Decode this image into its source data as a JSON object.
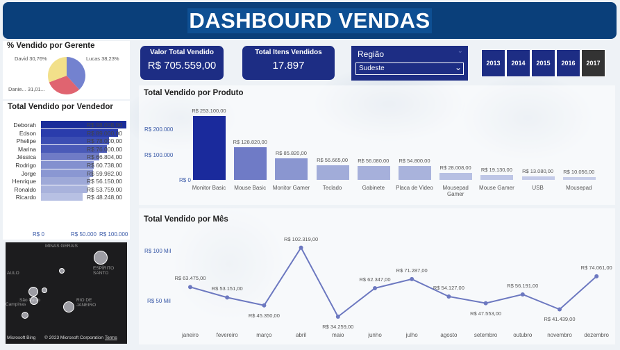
{
  "header": {
    "title": "DASHBOURD VENDAS"
  },
  "colors": {
    "header": "#0a3f7a",
    "kpi": "#1d2d84",
    "accent": "#6c78c0",
    "selected_year": "#333333"
  },
  "pie": {
    "title": "% Vendido por Gerente",
    "labels": [
      "David 30,76%",
      "Lucas 38,23%",
      "Danie... 31,01..."
    ],
    "slices": [
      {
        "name": "Lucas",
        "pct": 38.23,
        "color": "#7382cf"
      },
      {
        "name": "Daniel",
        "pct": 31.01,
        "color": "#e06470"
      },
      {
        "name": "David",
        "pct": 30.76,
        "color": "#f2e08a"
      }
    ]
  },
  "kpis": [
    {
      "title": "Valor Total Vendido",
      "value": "R$ 705.559,00"
    },
    {
      "title": "Total Itens Vendidos",
      "value": "17.897"
    }
  ],
  "region_filter": {
    "label": "Região",
    "selected": "Sudeste"
  },
  "years": [
    "2013",
    "2014",
    "2015",
    "2016",
    "2017"
  ],
  "selected_year": "2017",
  "vendedor_chart": {
    "title": "Total Vendido por Vendedor",
    "axis": [
      "R$ 0",
      "R$ 50.000",
      "R$ 100.000"
    ]
  },
  "product_chart": {
    "title": "Total Vendido por Produto",
    "axis": [
      "R$ 200.000",
      "R$ 100.000",
      "R$ 0"
    ]
  },
  "month_chart": {
    "title": "Total Vendido por Mês",
    "axis": [
      "R$ 100 Mil",
      "R$ 50 Mil"
    ]
  },
  "map": {
    "labels": [
      "MINAS GERAIS",
      "ESPÍRITO SANTO",
      "AULO",
      "Campinas",
      "São Paulo",
      "RIO DE JANEIRO",
      "Microsoft Bing",
      "© 2023 Microsoft Corporation",
      "Terms"
    ]
  },
  "chart_data": [
    {
      "type": "pie",
      "title": "% Vendido por Gerente",
      "categories": [
        "Lucas",
        "Danie...",
        "David"
      ],
      "values": [
        38.23,
        31.01,
        30.76
      ]
    },
    {
      "type": "bar",
      "title": "Total Vendido por Vendedor",
      "categories": [
        "Deborah",
        "Edson",
        "Phelipe",
        "Marina",
        "Jéssica",
        "Rodrigo",
        "Jorge",
        "Henrique",
        "Ronaldo",
        "Ricardo"
      ],
      "values": [
        98008,
        89000,
        78000,
        76000,
        66804,
        60738,
        59982,
        56150,
        53759,
        48248
      ],
      "labels": [
        "R$ 98.008,00",
        "R$ 89.000,00",
        "R$ 78.000,00",
        "R$ 76.000,00",
        "R$ 66.804,00",
        "R$ 60.738,00",
        "R$ 59.982,00",
        "R$ 56.150,00",
        "R$ 53.759,00",
        "R$ 48.248,00"
      ],
      "xlim": [
        0,
        100000
      ]
    },
    {
      "type": "bar",
      "title": "Total Vendido por Produto",
      "categories": [
        "Monitor Basic",
        "Mouse Basic",
        "Monitor Gamer",
        "Teclado",
        "Gabinete",
        "Placa de Video",
        "Mousepad Gamer",
        "Mouse Gamer",
        "USB",
        "Mousepad"
      ],
      "values": [
        253100,
        128820,
        85820,
        56665,
        56080,
        54800,
        28008,
        19130,
        13080,
        10056
      ],
      "labels": [
        "R$ 253.100,00",
        "R$ 128.820,00",
        "R$ 85.820,00",
        "R$ 56.665,00",
        "R$ 56.080,00",
        "R$ 54.800,00",
        "R$ 28.008,00",
        "R$ 19.130,00",
        "R$ 13.080,00",
        "R$ 10.056,00"
      ],
      "ylim": [
        0,
        260000
      ]
    },
    {
      "type": "line",
      "title": "Total Vendido por Mês",
      "categories": [
        "janeiro",
        "fevereiro",
        "março",
        "abril",
        "maio",
        "junho",
        "julho",
        "agosto",
        "setembro",
        "outubro",
        "novembro",
        "dezembro"
      ],
      "values": [
        63475,
        53151,
        45350,
        102319,
        34259,
        62347,
        71287,
        54127,
        47553,
        56191,
        41439,
        74061
      ],
      "labels": [
        "R$ 63.475,00",
        "R$ 53.151,00",
        "R$ 45.350,00",
        "R$ 102.319,00",
        "R$ 34.259,00",
        "R$ 62.347,00",
        "R$ 71.287,00",
        "R$ 54.127,00",
        "R$ 47.553,00",
        "R$ 56.191,00",
        "R$ 41.439,00",
        "R$ 74.061,00"
      ]
    }
  ]
}
